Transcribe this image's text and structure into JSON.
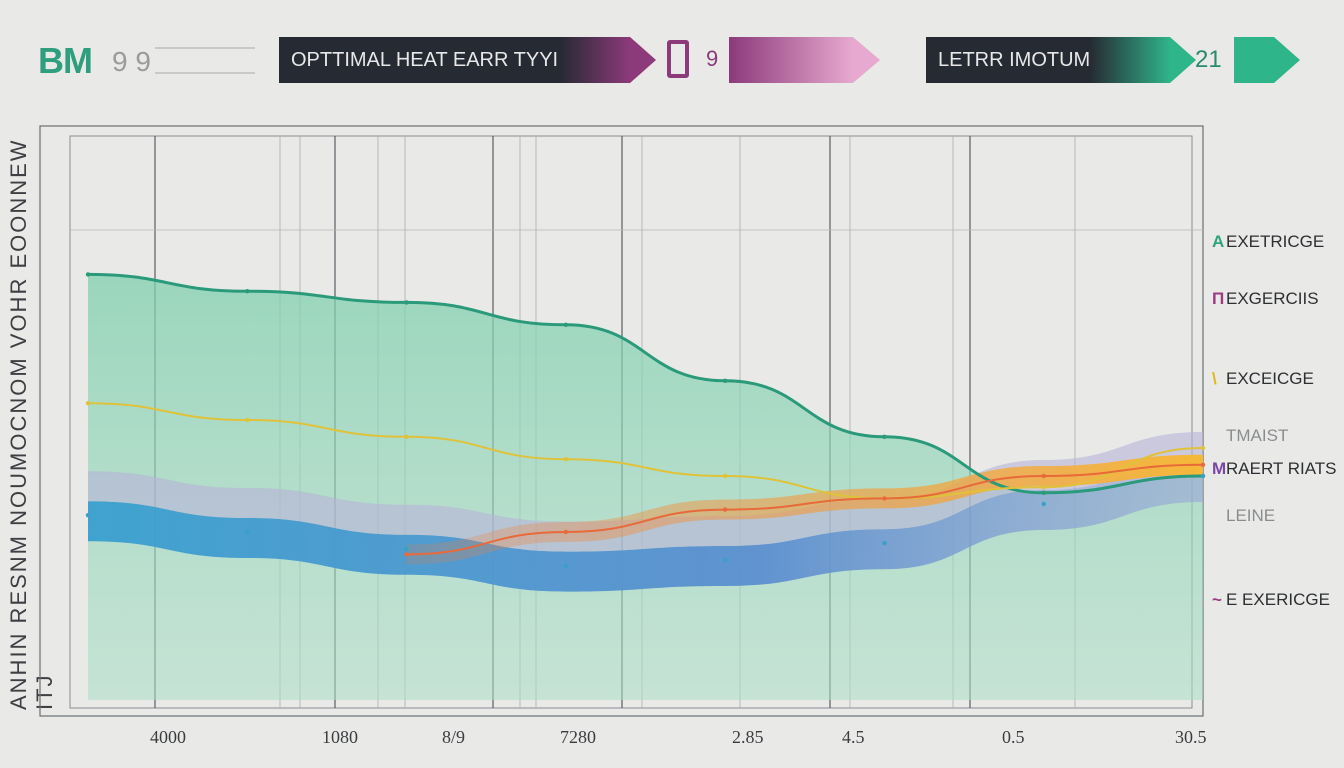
{
  "header": {
    "brand": "BM",
    "brand_number": "9 9",
    "tag1": "OPTTIMAL HEAT EARR TYYI TEZ",
    "tag2_number": "9",
    "tag3": "LETRR IMOTUME",
    "tag3_number": "21",
    "colors": {
      "dark": "#262a33",
      "purple": "#8c3a7a",
      "pink": "#e7a9cf",
      "green": "#2fb58a"
    }
  },
  "left_axis_text": "ANHIN RESNM NOUMOCNOM VOHR EOONNEW ITJ",
  "legend": [
    {
      "label": "EXETRICGE",
      "mark": "A",
      "color": "#2fa37f"
    },
    {
      "label": "EXGERCIIS",
      "mark": "Π",
      "color": "#9b3b86"
    },
    {
      "label": "EXCEICGE",
      "mark": "\\",
      "color": "#e1b818"
    },
    {
      "label": "TMAIST",
      "mark": "",
      "color": "#8a8c8f"
    },
    {
      "label": "RAERT RIATS",
      "mark": "M",
      "color": "#7b45a5"
    },
    {
      "label": "LEINE",
      "mark": "",
      "color": "#8a8c8f"
    },
    {
      "label": "E EXERICGE",
      "mark": "~",
      "color": "#9b3b86"
    }
  ],
  "chart_data": {
    "type": "area",
    "x_tick_labels": [
      "4000",
      "1080",
      "8/9",
      "7280",
      "2.85",
      "4.5",
      "0.5",
      "30.5"
    ],
    "x": [
      0,
      1,
      2,
      3,
      4,
      5,
      6,
      7
    ],
    "ylim": [
      0,
      100
    ],
    "grid": true,
    "legend_position": "right",
    "series": [
      {
        "name": "EXETRICGE",
        "kind": "line",
        "color": "#2a9a7a",
        "values": [
          76,
          73,
          71,
          67,
          57,
          47,
          37,
          40
        ]
      },
      {
        "name": "EXCEICGE",
        "kind": "line",
        "color": "#e0c23a",
        "values": [
          53,
          50,
          47,
          43,
          40,
          36,
          38,
          45
        ]
      },
      {
        "name": "RAERT RIATS",
        "kind": "band",
        "color": "#3aa0c8",
        "values": [
          33,
          30,
          27,
          24,
          25,
          28,
          35,
          40
        ]
      },
      {
        "name": "E EXERICGE",
        "kind": "line",
        "color": "#e86a3a",
        "values": [
          null,
          null,
          26,
          30,
          34,
          36,
          40,
          42
        ]
      }
    ]
  }
}
